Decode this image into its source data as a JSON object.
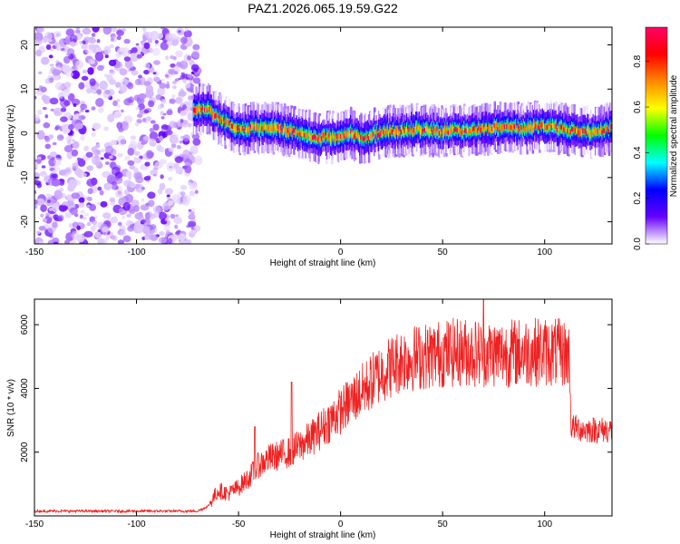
{
  "title": "PAZ1.2026.065.19.59.G22",
  "chart_data": [
    {
      "type": "heatmap",
      "name": "spectrogram",
      "xlabel": "Height of straight line (km)",
      "ylabel": "Frequency (Hz)",
      "xlim": [
        -150,
        133
      ],
      "ylim": [
        -25,
        24
      ],
      "xticks": [
        -150,
        -100,
        -50,
        0,
        50,
        100
      ],
      "yticks": [
        -20,
        -10,
        0,
        10,
        20
      ],
      "xtick_labels": [
        "-150",
        "-100",
        "-50",
        "0",
        "50",
        "100"
      ],
      "ytick_labels": [
        "-20",
        "-10",
        "0",
        "10",
        "20"
      ],
      "noise_region_x": [
        -150,
        -70
      ],
      "ridge": {
        "x": [
          -72,
          -65,
          -60,
          -55,
          -50,
          -40,
          -30,
          -20,
          -10,
          0,
          5,
          10,
          20,
          30,
          40,
          50,
          60,
          70,
          80,
          90,
          100,
          110,
          120,
          133
        ],
        "freq": [
          5.5,
          5.5,
          3.5,
          2.0,
          1.0,
          1.2,
          1.0,
          0.0,
          -1.0,
          -0.8,
          0.0,
          -1.2,
          0.3,
          0.6,
          0.8,
          0.5,
          0.6,
          0.9,
          1.4,
          1.2,
          1.8,
          0.8,
          0.2,
          1.0
        ]
      },
      "colorbar": {
        "label": "Normalized spectral amplitude",
        "range": [
          0,
          0.95
        ],
        "ticks": [
          0.0,
          0.2,
          0.4,
          0.6,
          0.8
        ],
        "tick_labels": [
          "0.0",
          "0.2",
          "0.4",
          "0.6",
          "0.8"
        ],
        "colormap": [
          "#ffffff",
          "#6600ff",
          "#0000ff",
          "#00ffff",
          "#00ff00",
          "#ffff00",
          "#ff8800",
          "#ff0000",
          "#ff0066"
        ]
      }
    },
    {
      "type": "line",
      "name": "snr",
      "xlabel": "Height of straight line (km)",
      "ylabel": "SNR (10 * v/v)",
      "xlim": [
        -150,
        133
      ],
      "ylim": [
        0,
        6800
      ],
      "xticks": [
        -150,
        -100,
        -50,
        0,
        50,
        100
      ],
      "yticks": [
        2000,
        4000,
        6000
      ],
      "xtick_labels": [
        "-150",
        "-100",
        "-50",
        "0",
        "50",
        "100"
      ],
      "ytick_labels": [
        "2000",
        "4000",
        "6000"
      ],
      "color": "#ee2222",
      "trend": {
        "x": [
          -150,
          -70,
          -65,
          -60,
          -55,
          -50,
          -45,
          -40,
          -35,
          -30,
          -25,
          -20,
          -15,
          -10,
          -5,
          0,
          5,
          10,
          15,
          20,
          25,
          30,
          40,
          50,
          60,
          70,
          80,
          90,
          100,
          110,
          112,
          113,
          120,
          133
        ],
        "snr": [
          150,
          150,
          300,
          800,
          700,
          900,
          1200,
          1600,
          1800,
          1900,
          2000,
          2200,
          2400,
          2700,
          3000,
          3300,
          3600,
          3900,
          4200,
          4500,
          4700,
          4900,
          5000,
          5100,
          5150,
          5100,
          5100,
          5150,
          5150,
          5100,
          5000,
          2800,
          2700,
          2700
        ]
      },
      "spikes": [
        {
          "x": -42,
          "snr": 2800
        },
        {
          "x": -24,
          "snr": 4200
        },
        {
          "x": 70,
          "snr": 6800
        }
      ]
    }
  ]
}
